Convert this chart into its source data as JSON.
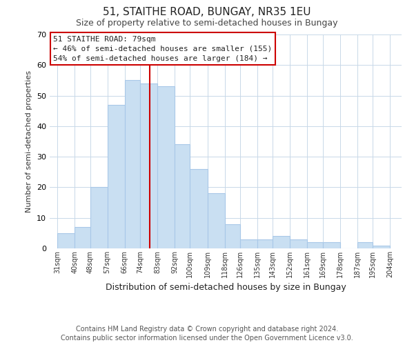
{
  "title": "51, STAITHE ROAD, BUNGAY, NR35 1EU",
  "subtitle": "Size of property relative to semi-detached houses in Bungay",
  "xlabel": "Distribution of semi-detached houses by size in Bungay",
  "ylabel": "Number of semi-detached properties",
  "footer_line1": "Contains HM Land Registry data © Crown copyright and database right 2024.",
  "footer_line2": "Contains public sector information licensed under the Open Government Licence v3.0.",
  "annotation_title": "51 STAITHE ROAD: 79sqm",
  "annotation_line1": "← 46% of semi-detached houses are smaller (155)",
  "annotation_line2": "54% of semi-detached houses are larger (184) →",
  "bar_left_edges": [
    31,
    40,
    48,
    57,
    66,
    74,
    83,
    92,
    100,
    109,
    118,
    126,
    135,
    143,
    152,
    161,
    169,
    178,
    187,
    195
  ],
  "bar_heights": [
    5,
    7,
    20,
    47,
    55,
    54,
    53,
    34,
    26,
    18,
    8,
    3,
    3,
    4,
    3,
    2,
    2,
    0,
    2,
    1
  ],
  "bar_widths": [
    9,
    8,
    9,
    9,
    8,
    9,
    9,
    8,
    9,
    9,
    8,
    9,
    8,
    9,
    9,
    8,
    9,
    9,
    8,
    9
  ],
  "tick_labels": [
    "31sqm",
    "40sqm",
    "48sqm",
    "57sqm",
    "66sqm",
    "74sqm",
    "83sqm",
    "92sqm",
    "100sqm",
    "109sqm",
    "118sqm",
    "126sqm",
    "135sqm",
    "143sqm",
    "152sqm",
    "161sqm",
    "169sqm",
    "178sqm",
    "187sqm",
    "195sqm",
    "204sqm"
  ],
  "tick_positions": [
    31,
    40,
    48,
    57,
    66,
    74,
    83,
    92,
    100,
    109,
    118,
    126,
    135,
    143,
    152,
    161,
    169,
    178,
    187,
    195,
    204
  ],
  "bar_color": "#c9dff2",
  "bar_edge_color": "#a8c8e8",
  "vline_x": 79,
  "vline_color": "#cc0000",
  "annotation_box_edge_color": "#cc0000",
  "ylim": [
    0,
    70
  ],
  "xlim": [
    27,
    210
  ],
  "background_color": "#ffffff",
  "grid_color": "#c8d8e8",
  "title_fontsize": 11,
  "subtitle_fontsize": 9,
  "ylabel_fontsize": 8,
  "xlabel_fontsize": 9,
  "footer_fontsize": 7,
  "tick_fontsize": 7,
  "ytick_fontsize": 8,
  "annot_fontsize": 8
}
